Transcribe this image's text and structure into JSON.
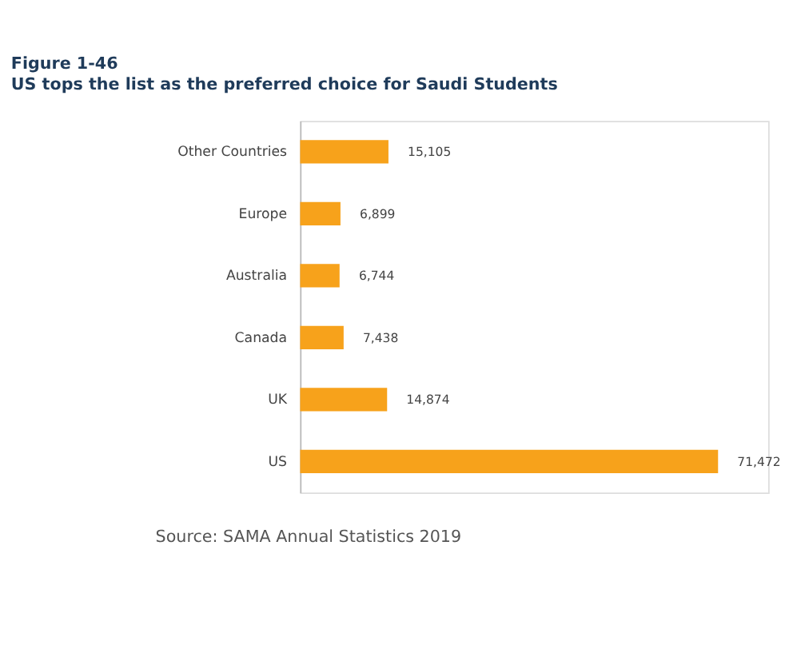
{
  "chart_data": {
    "type": "bar",
    "orientation": "horizontal",
    "title": "Figure 1-46",
    "subtitle": "US tops the list as the preferred choice for Saudi Students",
    "categories": [
      "Other Countries",
      "Europe",
      "Australia",
      "Canada",
      "UK",
      "US"
    ],
    "values": [
      15105,
      6899,
      6744,
      7438,
      14874,
      71472
    ],
    "value_labels": [
      "15,105",
      "6,899",
      "6,744",
      "7,438",
      "14,874",
      "71,472"
    ],
    "color": "#f7a21b",
    "annotations": [
      "Source: SAMA Annual Statistics 2019"
    ]
  }
}
